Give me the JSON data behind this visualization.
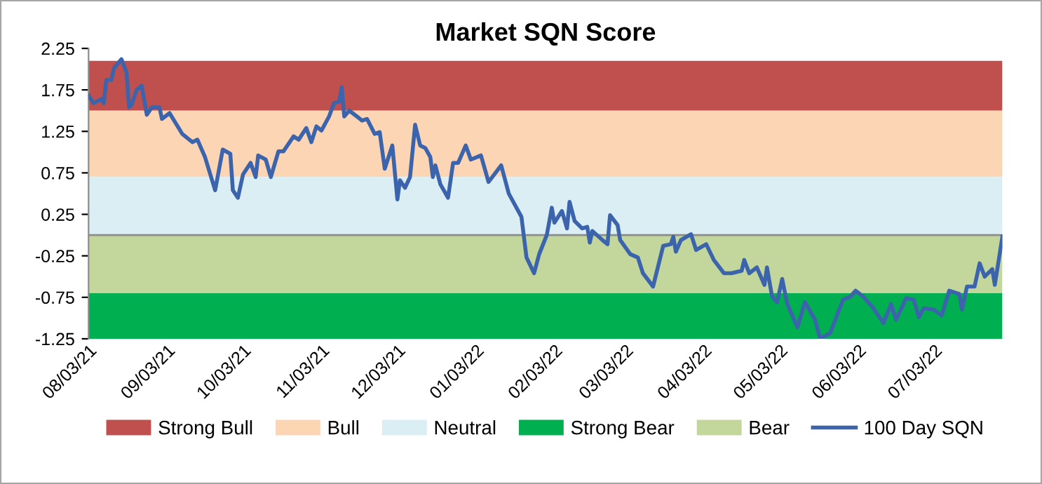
{
  "chart_data": {
    "type": "line",
    "title": "Market SQN Score",
    "x": [
      "2021-08-03",
      "2021-08-05",
      "2021-08-08",
      "2021-08-09",
      "2021-08-10",
      "2021-08-12",
      "2021-08-13",
      "2021-08-16",
      "2021-08-18",
      "2021-08-19",
      "2021-08-20",
      "2021-08-22",
      "2021-08-24",
      "2021-08-26",
      "2021-08-28",
      "2021-08-31",
      "2021-09-01",
      "2021-09-04",
      "2021-09-09",
      "2021-09-13",
      "2021-09-15",
      "2021-09-18",
      "2021-09-22",
      "2021-09-25",
      "2021-09-28",
      "2021-09-29",
      "2021-10-01",
      "2021-10-03",
      "2021-10-06",
      "2021-10-08",
      "2021-10-09",
      "2021-10-12",
      "2021-10-14",
      "2021-10-17",
      "2021-10-19",
      "2021-10-23",
      "2021-10-25",
      "2021-10-28",
      "2021-10-30",
      "2021-11-01",
      "2021-11-03",
      "2021-11-06",
      "2021-11-08",
      "2021-11-10",
      "2021-11-11",
      "2021-11-12",
      "2021-11-14",
      "2021-11-17",
      "2021-11-19",
      "2021-11-21",
      "2021-11-24",
      "2021-11-26",
      "2021-11-28",
      "2021-12-01",
      "2021-12-03",
      "2021-12-04",
      "2021-12-06",
      "2021-12-08",
      "2021-12-10",
      "2021-12-12",
      "2021-12-14",
      "2021-12-16",
      "2021-12-17",
      "2021-12-18",
      "2021-12-20",
      "2021-12-23",
      "2021-12-25",
      "2021-12-27",
      "2021-12-30",
      "2022-01-01",
      "2022-01-05",
      "2022-01-08",
      "2022-01-13",
      "2022-01-16",
      "2022-01-21",
      "2022-01-23",
      "2022-01-26",
      "2022-01-28",
      "2022-01-31",
      "2022-02-02",
      "2022-02-03",
      "2022-02-06",
      "2022-02-08",
      "2022-02-09",
      "2022-02-11",
      "2022-02-14",
      "2022-02-16",
      "2022-02-17",
      "2022-02-18",
      "2022-02-22",
      "2022-02-24",
      "2022-02-25",
      "2022-02-28",
      "2022-03-01",
      "2022-03-05",
      "2022-03-08",
      "2022-03-10",
      "2022-03-14",
      "2022-03-18",
      "2022-03-21",
      "2022-03-22",
      "2022-03-23",
      "2022-03-25",
      "2022-03-29",
      "2022-03-31",
      "2022-04-04",
      "2022-04-07",
      "2022-04-11",
      "2022-04-14",
      "2022-04-18",
      "2022-04-19",
      "2022-04-21",
      "2022-04-24",
      "2022-04-27",
      "2022-04-28",
      "2022-04-30",
      "2022-05-02",
      "2022-05-04",
      "2022-05-06",
      "2022-05-10",
      "2022-05-13",
      "2022-05-17",
      "2022-05-19",
      "2022-05-23",
      "2022-05-28",
      "2022-05-31",
      "2022-06-02",
      "2022-06-05",
      "2022-06-09",
      "2022-06-13",
      "2022-06-16",
      "2022-06-18",
      "2022-06-22",
      "2022-06-25",
      "2022-06-27",
      "2022-06-29",
      "2022-07-03",
      "2022-07-06",
      "2022-07-09",
      "2022-07-13",
      "2022-07-14",
      "2022-07-16",
      "2022-07-19",
      "2022-07-21",
      "2022-07-23",
      "2022-07-26",
      "2022-07-27",
      "2022-07-30"
    ],
    "series": [
      {
        "name": "100 Day SQN",
        "color": "#3b64ad",
        "values": [
          1.68,
          1.59,
          1.64,
          1.59,
          1.87,
          1.87,
          2.01,
          2.12,
          1.96,
          1.54,
          1.57,
          1.75,
          1.8,
          1.45,
          1.54,
          1.54,
          1.4,
          1.47,
          1.22,
          1.12,
          1.15,
          0.94,
          0.54,
          1.03,
          0.98,
          0.54,
          0.45,
          0.73,
          0.87,
          0.7,
          0.96,
          0.91,
          0.7,
          1.01,
          1.01,
          1.19,
          1.15,
          1.29,
          1.12,
          1.31,
          1.26,
          1.43,
          1.59,
          1.61,
          1.78,
          1.43,
          1.5,
          1.43,
          1.38,
          1.4,
          1.22,
          1.24,
          0.8,
          1.08,
          0.43,
          0.66,
          0.57,
          0.7,
          1.33,
          1.08,
          1.05,
          0.94,
          0.7,
          0.84,
          0.61,
          0.45,
          0.87,
          0.87,
          1.08,
          0.91,
          0.96,
          0.64,
          0.84,
          0.5,
          0.22,
          -0.27,
          -0.46,
          -0.23,
          0,
          0.33,
          0.15,
          0.29,
          0.08,
          0.4,
          0.17,
          0.08,
          0.1,
          -0.09,
          0.05,
          -0.06,
          -0.11,
          0.24,
          0.12,
          -0.06,
          -0.23,
          -0.27,
          -0.46,
          -0.62,
          -0.13,
          -0.11,
          -0.02,
          -0.2,
          -0.06,
          0.01,
          -0.18,
          -0.11,
          -0.3,
          -0.46,
          -0.46,
          -0.43,
          -0.3,
          -0.46,
          -0.39,
          -0.6,
          -0.39,
          -0.74,
          -0.81,
          -0.53,
          -0.83,
          -1.11,
          -0.81,
          -1.02,
          -1.25,
          -1.18,
          -0.78,
          -0.74,
          -0.67,
          -0.74,
          -0.88,
          -1.06,
          -0.83,
          -1.02,
          -0.76,
          -0.78,
          -0.99,
          -0.88,
          -0.9,
          -0.97,
          -0.67,
          -0.71,
          -0.9,
          -0.62,
          -0.62,
          -0.34,
          -0.5,
          -0.41,
          -0.6,
          -0.02
        ]
      }
    ],
    "bands": [
      {
        "axis": "y",
        "from": 1.5,
        "to": 2.1,
        "label": "Strong Bull",
        "color": "#c0504d"
      },
      {
        "axis": "y",
        "from": 0.7,
        "to": 1.5,
        "label": "Bull",
        "color": "#fcd5b5"
      },
      {
        "axis": "y",
        "from": 0,
        "to": 0.7,
        "label": "Neutral",
        "color": "#dbeef4"
      },
      {
        "axis": "y",
        "from": -1.25,
        "to": -0.7,
        "label": "Strong Bear",
        "color": "#00b050"
      },
      {
        "axis": "y",
        "from": -0.7,
        "to": 0,
        "label": "Bear",
        "color": "#c3d69b"
      }
    ],
    "xlim": [
      "2021-08-03",
      "2022-07-30"
    ],
    "xticks": [
      {
        "value": "2021-08-03",
        "label": "08/03/21"
      },
      {
        "value": "2021-09-03",
        "label": "09/03/21"
      },
      {
        "value": "2021-10-03",
        "label": "10/03/21"
      },
      {
        "value": "2021-11-03",
        "label": "11/03/21"
      },
      {
        "value": "2021-12-03",
        "label": "12/03/21"
      },
      {
        "value": "2022-01-03",
        "label": "01/03/22"
      },
      {
        "value": "2022-02-03",
        "label": "02/03/22"
      },
      {
        "value": "2022-03-03",
        "label": "03/03/22"
      },
      {
        "value": "2022-04-03",
        "label": "04/03/22"
      },
      {
        "value": "2022-05-03",
        "label": "05/03/22"
      },
      {
        "value": "2022-06-03",
        "label": "06/03/22"
      },
      {
        "value": "2022-07-03",
        "label": "07/03/22"
      }
    ],
    "ylim": [
      -1.25,
      2.25
    ],
    "yticks": [
      2.25,
      1.75,
      1.25,
      0.75,
      0.25,
      {
        "value": -0.25,
        "label": "-0.25"
      },
      {
        "value": -0.75,
        "label": "-0.75"
      },
      {
        "value": -1.25,
        "label": "-1.25"
      }
    ],
    "grid": false,
    "legend": "bottom",
    "marker": "none",
    "line_style": "solid"
  }
}
